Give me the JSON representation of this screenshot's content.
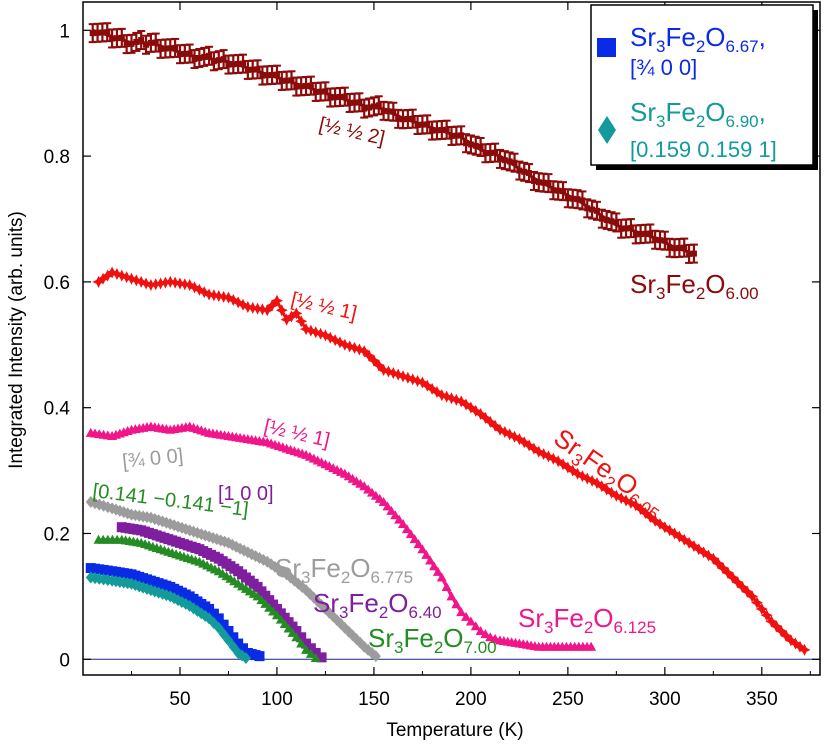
{
  "chart_data": {
    "type": "scatter",
    "xlabel": "Temperature (K)",
    "ylabel": "Integrated Intensity (arb. units)",
    "xlim": [
      0,
      380
    ],
    "ylim": [
      -0.025,
      1.045
    ],
    "x_ticks": [
      "50",
      "100",
      "150",
      "200",
      "250",
      "300",
      "350"
    ],
    "y_ticks": [
      "0",
      "0.2",
      "0.4",
      "0.6",
      "0.8",
      "1"
    ],
    "grid": false,
    "legend_position": "top-right",
    "legend": [
      {
        "formula_base": "Sr",
        "sub1": "3",
        "mid": "Fe",
        "sub2": "2",
        "mid2": "O",
        "sub3": "6.67",
        "suffix": ",",
        "reflection": "[¾ 0 0]",
        "color": "#0a2be6",
        "marker": "square"
      },
      {
        "formula_base": "Sr",
        "sub1": "3",
        "mid": "Fe",
        "sub2": "2",
        "mid2": "O",
        "sub3": "6.90",
        "suffix": ",",
        "reflection": "[0.159 0.159 1]",
        "color": "#139a9a",
        "marker": "diamond"
      }
    ],
    "series": [
      {
        "name": "Sr3Fe2O6.00",
        "formula": {
          "a": "Sr",
          "b": "3",
          "c": "Fe",
          "d": "2",
          "e": "O",
          "f": "6.00"
        },
        "reflection": "[½ ½ 2]",
        "color": "#8b0a0a",
        "marker": "errorbar",
        "x": [
          5,
          15,
          25,
          35,
          45,
          55,
          65,
          75,
          85,
          95,
          105,
          115,
          125,
          135,
          145,
          155,
          165,
          175,
          185,
          195,
          205,
          215,
          225,
          235,
          245,
          255,
          265,
          275,
          285,
          295,
          305,
          315
        ],
        "y": [
          1.0,
          0.99,
          0.98,
          0.98,
          0.97,
          0.96,
          0.955,
          0.95,
          0.94,
          0.93,
          0.92,
          0.91,
          0.9,
          0.89,
          0.88,
          0.875,
          0.86,
          0.85,
          0.84,
          0.83,
          0.81,
          0.8,
          0.78,
          0.76,
          0.745,
          0.73,
          0.71,
          0.69,
          0.68,
          0.67,
          0.655,
          0.645
        ]
      },
      {
        "name": "Sr3Fe2O6.05",
        "formula": {
          "a": "Sr",
          "b": "3",
          "c": "Fe",
          "d": "2",
          "e": "O",
          "f": "6.05"
        },
        "reflection": "[½ ½ 1]",
        "color": "#f01010",
        "marker": "star",
        "x": [
          8,
          15,
          25,
          35,
          45,
          55,
          65,
          75,
          85,
          95,
          100,
          105,
          110,
          115,
          125,
          135,
          145,
          155,
          165,
          175,
          185,
          195,
          205,
          215,
          225,
          235,
          245,
          255,
          265,
          275,
          285,
          295,
          305,
          315,
          325,
          335,
          345,
          355,
          365,
          372
        ],
        "y": [
          0.6,
          0.615,
          0.605,
          0.595,
          0.6,
          0.595,
          0.58,
          0.575,
          0.56,
          0.555,
          0.57,
          0.54,
          0.55,
          0.525,
          0.515,
          0.5,
          0.49,
          0.46,
          0.45,
          0.44,
          0.42,
          0.41,
          0.39,
          0.365,
          0.35,
          0.33,
          0.315,
          0.295,
          0.28,
          0.26,
          0.245,
          0.22,
          0.2,
          0.18,
          0.16,
          0.13,
          0.1,
          0.06,
          0.03,
          0.015
        ]
      },
      {
        "name": "Sr3Fe2O6.125",
        "formula": {
          "a": "Sr",
          "b": "3",
          "c": "Fe",
          "d": "2",
          "e": "O",
          "f": "6.125"
        },
        "reflection": "[½ ½ 1]",
        "color": "#f0168a",
        "marker": "triangle",
        "x": [
          4,
          15,
          25,
          35,
          45,
          55,
          65,
          75,
          85,
          95,
          105,
          115,
          125,
          135,
          145,
          155,
          165,
          175,
          185,
          190,
          195,
          200,
          205,
          210,
          215,
          225,
          235,
          245,
          262
        ],
        "y": [
          0.36,
          0.355,
          0.365,
          0.37,
          0.365,
          0.37,
          0.36,
          0.355,
          0.35,
          0.345,
          0.335,
          0.325,
          0.31,
          0.295,
          0.275,
          0.25,
          0.215,
          0.175,
          0.13,
          0.1,
          0.075,
          0.06,
          0.045,
          0.035,
          0.03,
          0.025,
          0.02,
          0.02,
          0.02
        ]
      },
      {
        "name": "Sr3Fe2O6.775",
        "formula": {
          "a": "Sr",
          "b": "3",
          "c": "Fe",
          "d": "2",
          "e": "O",
          "f": "6.775"
        },
        "reflection": "[¾ 0 0]",
        "color": "#9c9c9c",
        "marker": "diamond",
        "x": [
          4,
          15,
          25,
          35,
          45,
          55,
          65,
          75,
          85,
          95,
          105,
          115,
          125,
          135,
          145,
          151
        ],
        "y": [
          0.25,
          0.24,
          0.23,
          0.225,
          0.215,
          0.205,
          0.195,
          0.185,
          0.17,
          0.155,
          0.135,
          0.11,
          0.08,
          0.05,
          0.02,
          0.005
        ]
      },
      {
        "name": "Sr3Fe2O6.40",
        "formula": {
          "a": "Sr",
          "b": "3",
          "c": "Fe",
          "d": "2",
          "e": "O",
          "f": "6.40"
        },
        "reflection": "[1 0 0]",
        "color": "#7f1fa0",
        "marker": "square",
        "x": [
          20,
          30,
          40,
          50,
          60,
          70,
          80,
          90,
          100,
          110,
          115,
          120,
          123
        ],
        "y": [
          0.21,
          0.205,
          0.195,
          0.185,
          0.175,
          0.16,
          0.14,
          0.115,
          0.08,
          0.045,
          0.025,
          0.01,
          0.003
        ]
      },
      {
        "name": "Sr3Fe2O7.00",
        "formula": {
          "a": "Sr",
          "b": "3",
          "c": "Fe",
          "d": "2",
          "e": "O",
          "f": "7.00"
        },
        "reflection": "[0.141 −0.141 −1]",
        "color": "#238c23",
        "marker": "triangle",
        "x": [
          8,
          20,
          30,
          40,
          50,
          60,
          70,
          80,
          90,
          100,
          110,
          115,
          120
        ],
        "y": [
          0.19,
          0.19,
          0.185,
          0.175,
          0.165,
          0.155,
          0.14,
          0.12,
          0.1,
          0.07,
          0.035,
          0.015,
          0.002
        ]
      },
      {
        "name": "Sr3Fe2O6.67",
        "formula": {
          "a": "Sr",
          "b": "3",
          "c": "Fe",
          "d": "2",
          "e": "O",
          "f": "6.67"
        },
        "reflection": "[¾ 0 0]",
        "color": "#0a2be6",
        "marker": "square",
        "x": [
          4,
          15,
          25,
          35,
          45,
          55,
          65,
          70,
          75,
          80,
          85,
          91
        ],
        "y": [
          0.145,
          0.14,
          0.135,
          0.125,
          0.115,
          0.1,
          0.08,
          0.065,
          0.045,
          0.025,
          0.01,
          0.005
        ]
      },
      {
        "name": "Sr3Fe2O6.90",
        "formula": {
          "a": "Sr",
          "b": "3",
          "c": "Fe",
          "d": "2",
          "e": "O",
          "f": "6.90"
        },
        "reflection": "[0.159 0.159 1]",
        "color": "#139a9a",
        "marker": "diamond",
        "x": [
          4,
          15,
          25,
          35,
          45,
          55,
          65,
          70,
          75,
          80,
          84
        ],
        "y": [
          0.13,
          0.125,
          0.12,
          0.11,
          0.1,
          0.085,
          0.065,
          0.05,
          0.03,
          0.01,
          0.002
        ]
      }
    ]
  }
}
